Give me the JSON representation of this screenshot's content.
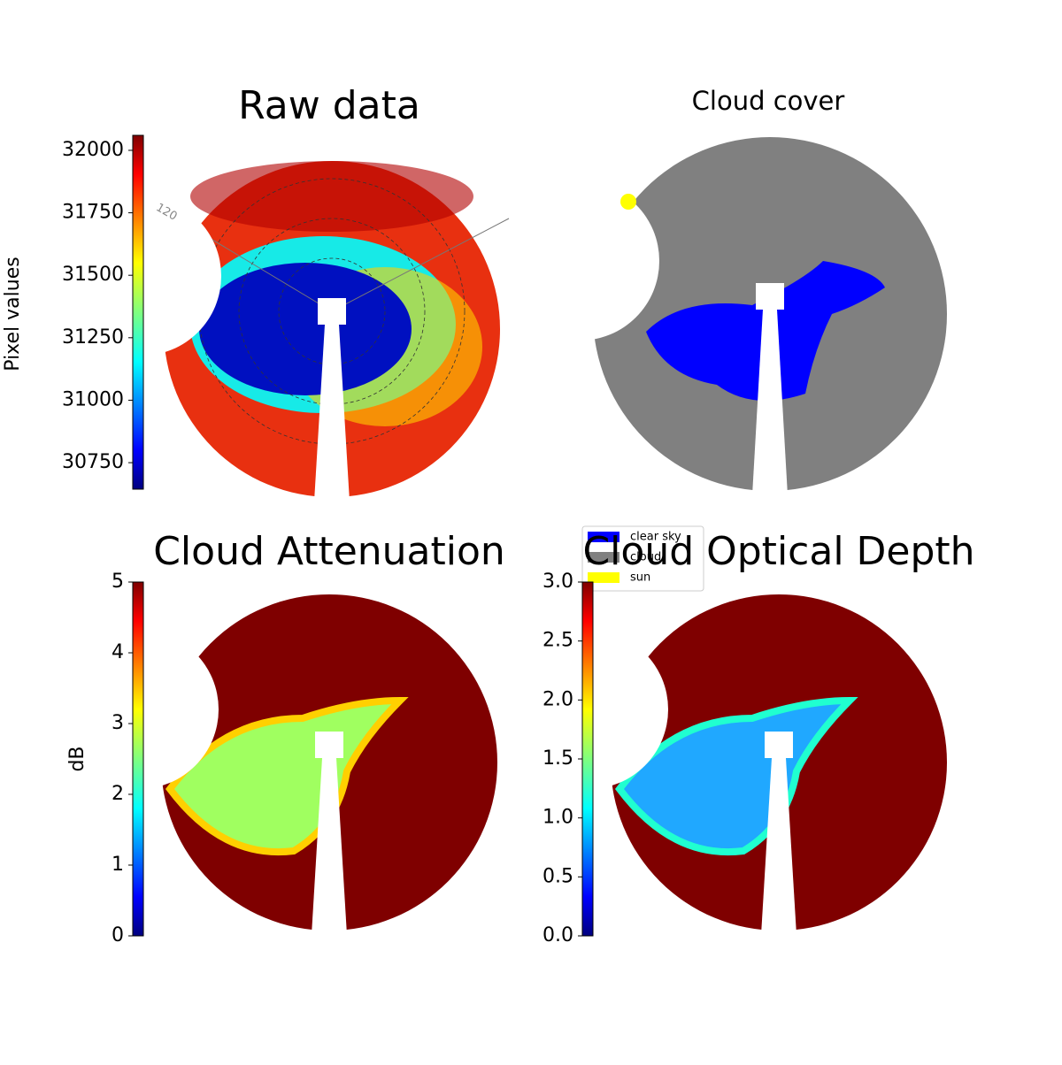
{
  "chart_data": [
    {
      "type": "image",
      "title": "Raw data",
      "ylabel": "Pixel values",
      "colormap": "jet",
      "ylim": [
        30644,
        32060
      ],
      "yticks": [
        30750,
        31000,
        31250,
        31500,
        31750,
        32000
      ],
      "annotations": [
        "120"
      ]
    },
    {
      "type": "image",
      "title": "Cloud cover",
      "series": [
        {
          "name": "clear sky",
          "color": "#0000ff"
        },
        {
          "name": "cloud",
          "color": "#808080"
        },
        {
          "name": "sun",
          "color": "#ffff00"
        }
      ]
    },
    {
      "type": "image",
      "title": "Cloud Attenuation",
      "ylabel": "dB",
      "colormap": "jet",
      "ylim": [
        0,
        5
      ],
      "yticks": [
        0,
        1,
        2,
        3,
        4,
        5
      ]
    },
    {
      "type": "image",
      "title": "Cloud Optical Depth",
      "colormap": "jet",
      "ylim": [
        0,
        3
      ],
      "yticks": [
        {
          "value": 0,
          "label": "0.0"
        },
        0.5,
        {
          "value": 1,
          "label": "1.0"
        },
        1.5,
        {
          "value": 2,
          "label": "2.0"
        },
        2.5,
        {
          "value": 3,
          "label": "3.0"
        }
      ]
    }
  ]
}
